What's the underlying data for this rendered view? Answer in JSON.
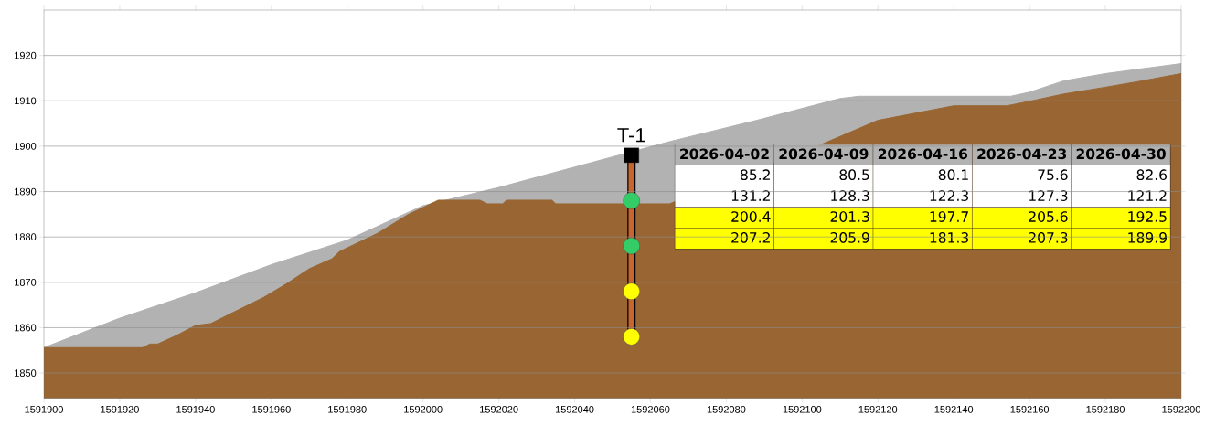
{
  "chart_data": {
    "type": "area",
    "xlim": [
      1591900,
      1592200
    ],
    "ylim": [
      1844.5,
      1930
    ],
    "xticks": [
      1591900,
      1591920,
      1591940,
      1591960,
      1591980,
      1592000,
      1592020,
      1592040,
      1592060,
      1592080,
      1592100,
      1592120,
      1592140,
      1592160,
      1592180,
      1592200
    ],
    "yticks": [
      1850,
      1860,
      1870,
      1880,
      1890,
      1900,
      1910,
      1920
    ],
    "grid": "y",
    "series": [
      {
        "color": "#b2b2b2",
        "x": [
          1591900,
          1591920,
          1591940,
          1591960,
          1591980,
          1592000,
          1592020,
          1592040,
          1592065,
          1592088,
          1592110,
          1592115,
          1592155,
          1592160,
          1592169,
          1592180,
          1592189,
          1592200
        ],
        "values": [
          1855.6,
          1862.1,
          1867.7,
          1873.9,
          1879.3,
          1886.9,
          1890.9,
          1895.4,
          1901.0,
          1905.7,
          1910.5,
          1911.0,
          1911.0,
          1911.9,
          1914.4,
          1916.0,
          1917.0,
          1918.2
        ]
      },
      {
        "color": "#996633",
        "x": [
          1591900,
          1591926,
          1591928,
          1591930,
          1591935,
          1591940,
          1591944,
          1591950,
          1591958,
          1591964,
          1591970,
          1591976,
          1591978,
          1591988,
          1591996,
          1592003,
          1592004,
          1592015,
          1592017,
          1592021,
          1592022,
          1592034,
          1592035,
          1592065,
          1592104,
          1592120,
          1592140,
          1592154,
          1592160,
          1592169,
          1592180,
          1592189,
          1592200
        ],
        "values": [
          1855.6,
          1855.6,
          1856.4,
          1856.4,
          1858.3,
          1860.5,
          1860.9,
          1863.4,
          1866.7,
          1869.7,
          1873.0,
          1875.2,
          1876.8,
          1880.8,
          1884.9,
          1887.7,
          1888.1,
          1888.1,
          1887.3,
          1887.3,
          1888.1,
          1888.1,
          1887.3,
          1887.3,
          1900.0,
          1905.7,
          1908.9,
          1908.9,
          1909.9,
          1911.5,
          1913.0,
          1914.3,
          1916.0
        ]
      },
      {
        "type": "line",
        "color": "#c8642d",
        "x": [
          1592055,
          1592055
        ],
        "values": [
          1898,
          1858
        ]
      },
      {
        "type": "scatter",
        "marker": "square",
        "color": "#000000",
        "x": [
          1592055
        ],
        "values": [
          1898
        ]
      },
      {
        "type": "scatter",
        "marker": "circle",
        "colors": [
          "#33cc66",
          "#33cc66",
          "#ffff00",
          "#ffff00"
        ],
        "x": [
          1592055,
          1592055,
          1592055,
          1592055
        ],
        "values": [
          1888,
          1878,
          1868,
          1858
        ]
      }
    ],
    "annotations": [
      {
        "text": "T-1",
        "x": 1592055,
        "y": 1898
      },
      "2026-04-02",
      "2026-04-09",
      "2026-04-16",
      "2026-04-23",
      "2026-04-30",
      "85.2",
      "80.5",
      "80.1",
      "75.6",
      "82.6",
      "131.2",
      "128.3",
      "122.3",
      "127.3",
      "121.2",
      "200.4",
      "201.3",
      "197.7",
      "205.6",
      "192.5",
      "207.2",
      "205.9",
      "181.3",
      "207.3",
      "189.9"
    ]
  }
}
